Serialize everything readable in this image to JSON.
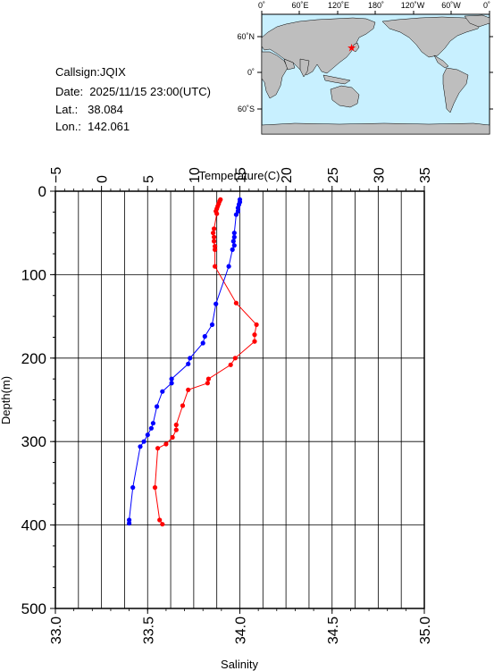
{
  "station": {
    "callsign": "Callsign:JQIX",
    "date": "Date:  2025/11/15 23:00(UTC)",
    "lat": "Lat.:   38.084",
    "lon": "Lon.:  142.061"
  },
  "map": {
    "top_labels": [
      "0˚",
      "60˚E",
      "120˚E",
      "180˚",
      "120˚W",
      "60˚W",
      "0˚"
    ],
    "left_labels": [
      "60˚N",
      "0˚",
      "60˚S"
    ],
    "ocean_color": "#c8f0ff",
    "land_color": "#bebebe",
    "marker_color": "#ff0000",
    "station_lon": 142.061,
    "station_lat": 38.084
  },
  "chart_data": {
    "type": "line",
    "ylabel": "Depth(m)",
    "ylim": [
      0,
      500
    ],
    "y_ticks": [
      "0",
      "100",
      "200",
      "300",
      "400",
      "500"
    ],
    "y_reversed": true,
    "grid": true,
    "temperature_axis": {
      "label": "Temperature(C)",
      "range": [
        -5,
        35
      ],
      "ticks": [
        "−5",
        "0",
        "5",
        "10",
        "15",
        "20",
        "25",
        "30",
        "35"
      ]
    },
    "salinity_axis": {
      "label": "Salinity",
      "range": [
        33.0,
        35.0
      ],
      "ticks": [
        "33.0",
        "33.5",
        "34.0",
        "34.5",
        "35.0"
      ]
    },
    "series": [
      {
        "axis": "temperature",
        "color": "#ff0000",
        "points": [
          [
            12.9,
            10
          ],
          [
            12.8,
            12
          ],
          [
            12.7,
            15
          ],
          [
            12.6,
            18
          ],
          [
            12.5,
            21
          ],
          [
            12.4,
            24
          ],
          [
            12.5,
            27
          ],
          [
            12.2,
            45
          ],
          [
            12.1,
            50
          ],
          [
            12.2,
            55
          ],
          [
            12.2,
            60
          ],
          [
            12.3,
            66
          ],
          [
            12.3,
            70
          ],
          [
            12.3,
            90
          ],
          [
            14.6,
            134
          ],
          [
            16.8,
            160
          ],
          [
            16.6,
            172
          ],
          [
            16.6,
            180
          ],
          [
            14.5,
            200
          ],
          [
            14.0,
            208
          ],
          [
            11.6,
            225
          ],
          [
            11.5,
            230
          ],
          [
            9.4,
            238
          ],
          [
            8.8,
            257
          ],
          [
            8.1,
            280
          ],
          [
            8.1,
            286
          ],
          [
            7.7,
            295
          ],
          [
            7.0,
            303
          ],
          [
            6.1,
            308
          ],
          [
            5.8,
            355
          ],
          [
            6.3,
            394
          ],
          [
            6.6,
            399
          ]
        ]
      },
      {
        "axis": "salinity",
        "color": "#0000ff",
        "points": [
          [
            34.0,
            10
          ],
          [
            34.0,
            13
          ],
          [
            33.995,
            16
          ],
          [
            33.99,
            20
          ],
          [
            33.99,
            24
          ],
          [
            33.98,
            28
          ],
          [
            33.97,
            50
          ],
          [
            33.97,
            55
          ],
          [
            33.965,
            60
          ],
          [
            33.97,
            65
          ],
          [
            33.96,
            70
          ],
          [
            33.94,
            90
          ],
          [
            33.87,
            135
          ],
          [
            33.85,
            160
          ],
          [
            33.81,
            174
          ],
          [
            33.8,
            182
          ],
          [
            33.73,
            200
          ],
          [
            33.72,
            207
          ],
          [
            33.63,
            225
          ],
          [
            33.63,
            230
          ],
          [
            33.58,
            240
          ],
          [
            33.55,
            258
          ],
          [
            33.53,
            278
          ],
          [
            33.52,
            284
          ],
          [
            33.5,
            292
          ],
          [
            33.48,
            300
          ],
          [
            33.46,
            306
          ],
          [
            33.42,
            355
          ],
          [
            33.4,
            394
          ],
          [
            33.4,
            398
          ]
        ]
      }
    ]
  }
}
